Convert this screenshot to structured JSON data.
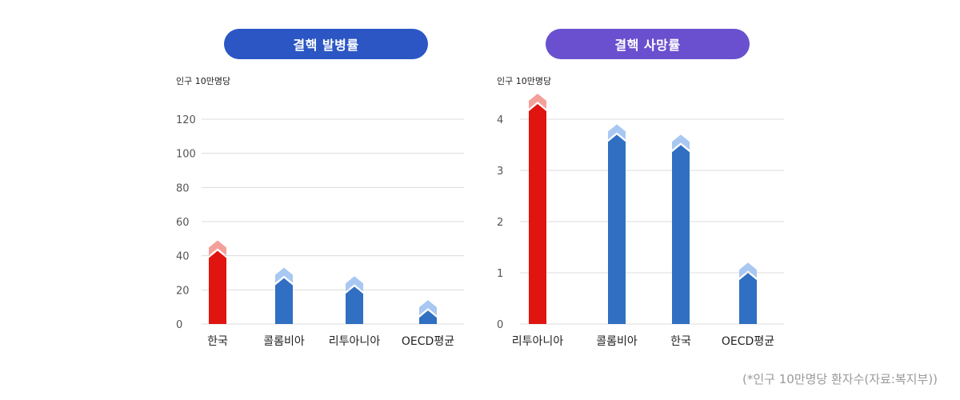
{
  "colors": {
    "pill_left": "#2b56c4",
    "pill_right": "#6a50cf",
    "highlight_bar": "#e0150f",
    "highlight_arrow": "#f4a09a",
    "normal_bar": "#316fc2",
    "normal_arrow": "#a8c8f2",
    "grid": "#dcdcdc"
  },
  "footnote": "(*인구 10만명당 환자수(자료:복지부))",
  "chart_data": [
    {
      "type": "bar",
      "title": "결핵 발병률",
      "unit_label": "인구 10만명당",
      "categories": [
        "한국",
        "콜롬비아",
        "리투아니아",
        "OECD평균"
      ],
      "values": [
        49,
        33,
        28,
        14
      ],
      "highlight": [
        true,
        false,
        false,
        false
      ],
      "ylim": [
        0,
        120
      ],
      "yticks": [
        0,
        20,
        40,
        60,
        80,
        100,
        120
      ],
      "grid": true
    },
    {
      "type": "bar",
      "title": "결핵 사망률",
      "unit_label": "인구 10만명당",
      "categories": [
        "리투아니아",
        "콜롬비아",
        "한국",
        "OECD평균"
      ],
      "values": [
        4.5,
        3.9,
        3.7,
        1.2
      ],
      "highlight": [
        true,
        false,
        false,
        false
      ],
      "ylim": [
        0,
        4
      ],
      "yticks": [
        0,
        1,
        2,
        3,
        4
      ],
      "grid": true
    }
  ]
}
